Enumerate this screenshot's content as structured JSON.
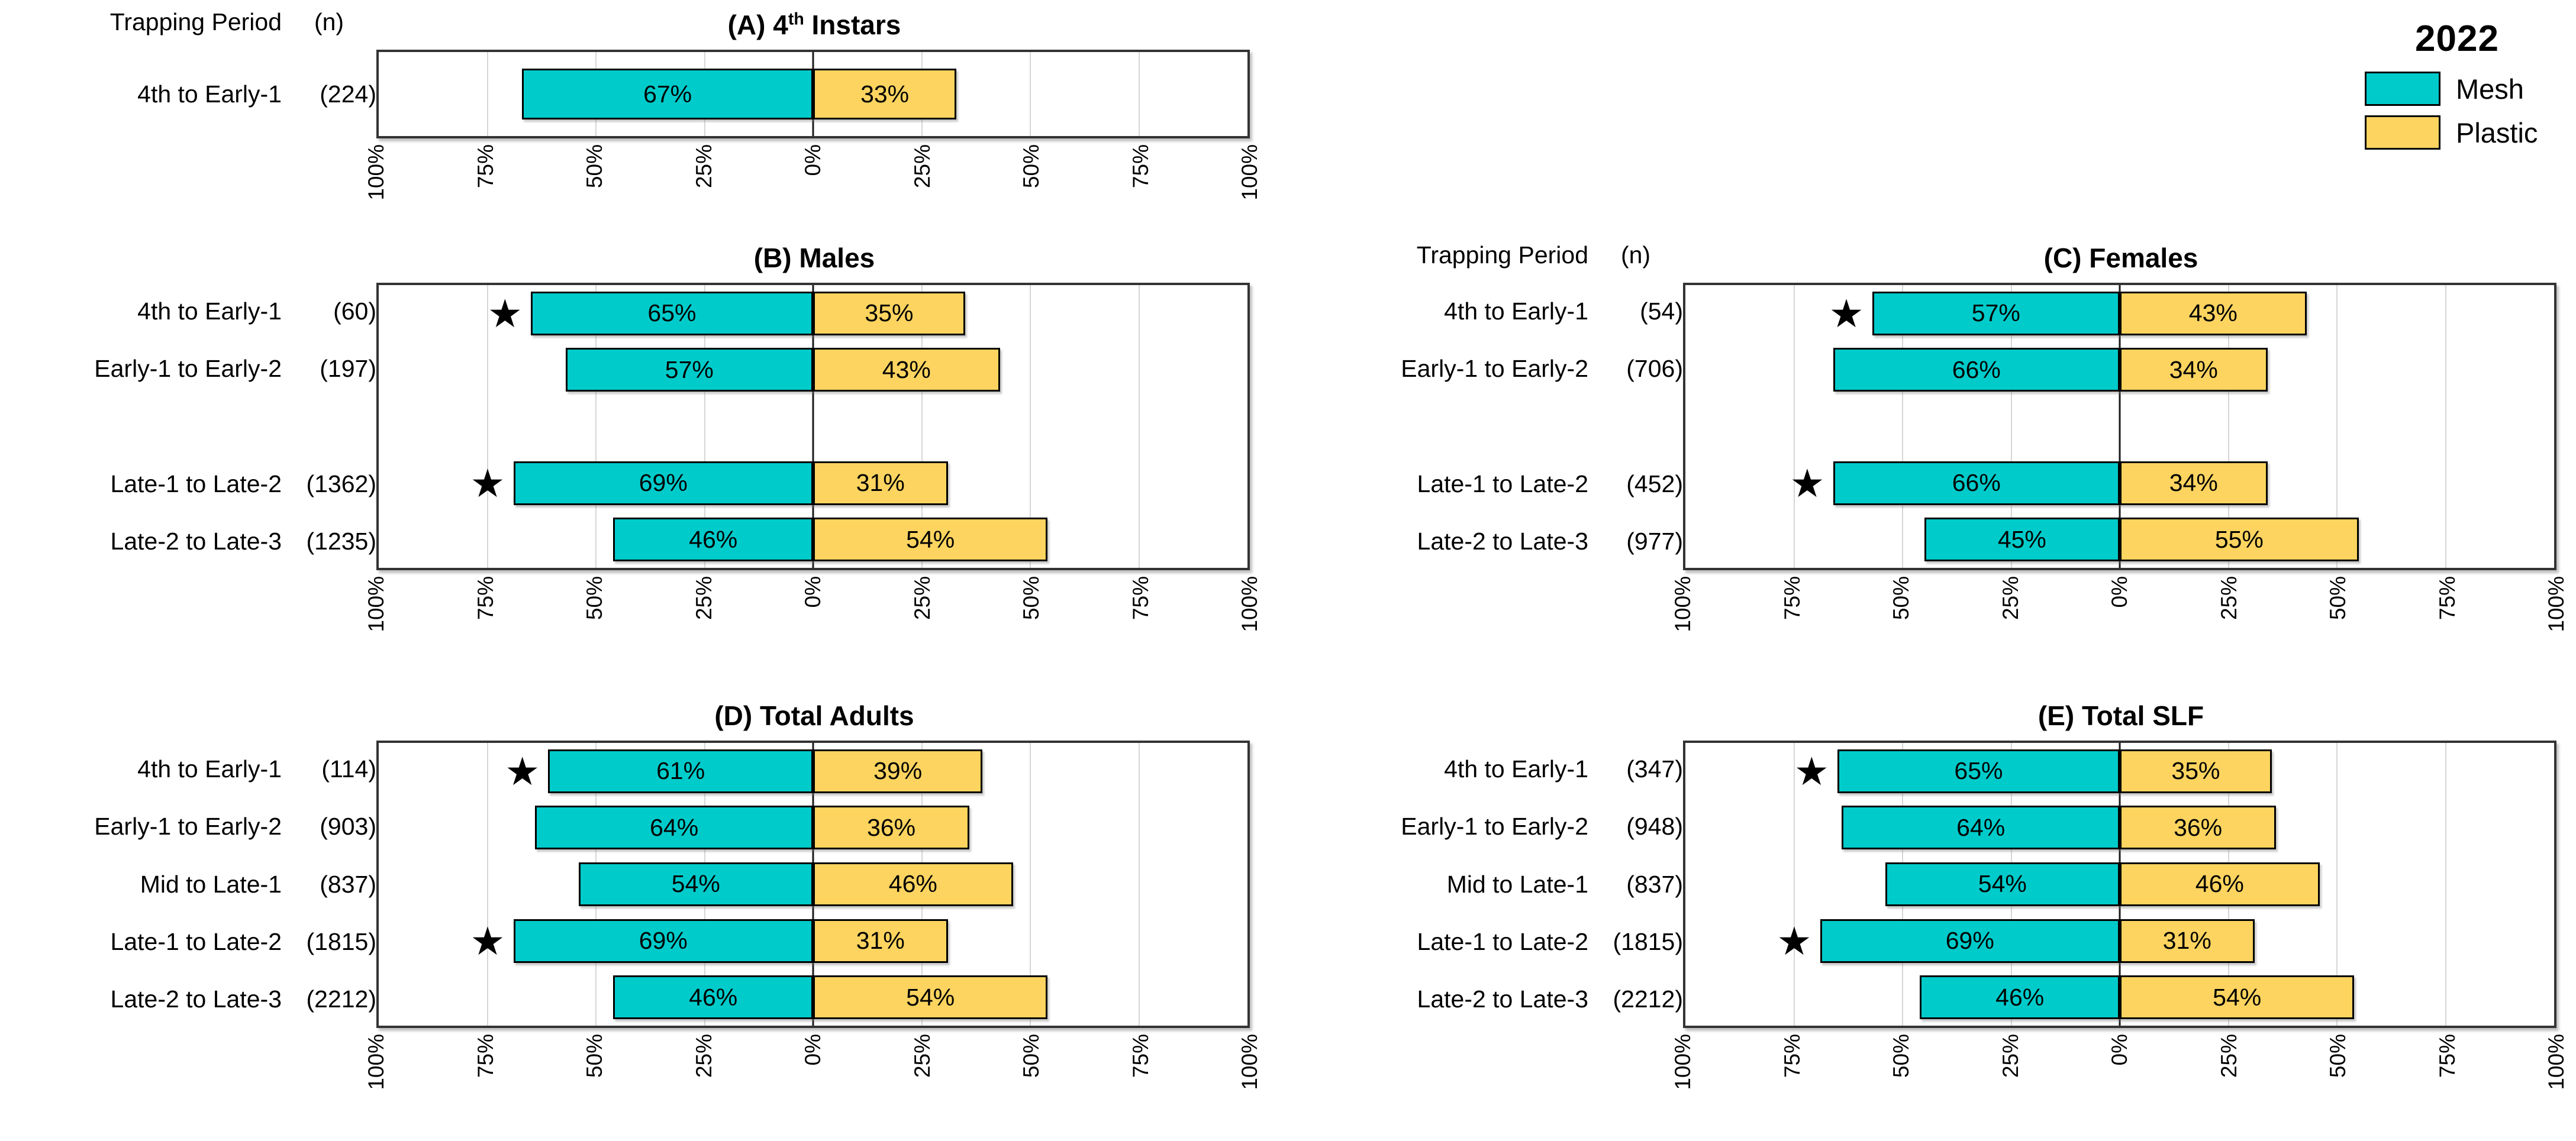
{
  "legend": {
    "year": "2022",
    "items": [
      {
        "label": "Mesh",
        "color": "#00CBCB"
      },
      {
        "label": "Plastic",
        "color": "#FCD45F"
      }
    ]
  },
  "column_header": {
    "period": "Trapping Period",
    "n": "(n)"
  },
  "axis": {
    "tick_labels": [
      "100%",
      "75%",
      "50%",
      "25%",
      "0%",
      "25%",
      "50%",
      "75%",
      "100%"
    ],
    "xlim": [
      -100,
      100
    ],
    "tick_step": 25,
    "orientation": "horizontal-diverging",
    "tick_rotation": "vertical"
  },
  "colors": {
    "mesh": "#00CBCB",
    "plastic": "#FCD45F",
    "gridline": "#D6D6D6",
    "center_line": "#1A1A1A"
  },
  "chart_data": [
    {
      "panel": "A",
      "type": "bar",
      "title": "(A) 4th Instars",
      "title_parts": {
        "pre": "(A) 4",
        "sup": "th",
        "post": " Instars"
      },
      "show_column_header": true,
      "series_names": [
        "Mesh",
        "Plastic"
      ],
      "rows": [
        {
          "period": "4th to Early-1",
          "n": 224,
          "n_label": "(224)",
          "mesh": 67,
          "plastic": 33,
          "star": false
        }
      ]
    },
    {
      "panel": "B",
      "type": "bar",
      "title": "(B) Males",
      "show_column_header": false,
      "series_names": [
        "Mesh",
        "Plastic"
      ],
      "rows": [
        {
          "period": "4th to Early-1",
          "n": 60,
          "n_label": "(60)",
          "mesh": 65,
          "plastic": 35,
          "star": true
        },
        {
          "period": "Early-1 to Early-2",
          "n": 197,
          "n_label": "(197)",
          "mesh": 57,
          "plastic": 43,
          "star": false
        },
        null,
        {
          "period": "Late-1 to Late-2",
          "n": 1362,
          "n_label": "(1362)",
          "mesh": 69,
          "plastic": 31,
          "star": true
        },
        {
          "period": "Late-2 to Late-3",
          "n": 1235,
          "n_label": "(1235)",
          "mesh": 46,
          "plastic": 54,
          "star": false
        }
      ]
    },
    {
      "panel": "C",
      "type": "bar",
      "title": "(C) Females",
      "show_column_header": true,
      "series_names": [
        "Mesh",
        "Plastic"
      ],
      "rows": [
        {
          "period": "4th to Early-1",
          "n": 54,
          "n_label": "(54)",
          "mesh": 57,
          "plastic": 43,
          "star": true
        },
        {
          "period": "Early-1 to Early-2",
          "n": 706,
          "n_label": "(706)",
          "mesh": 66,
          "plastic": 34,
          "star": false
        },
        null,
        {
          "period": "Late-1 to Late-2",
          "n": 452,
          "n_label": "(452)",
          "mesh": 66,
          "plastic": 34,
          "star": true
        },
        {
          "period": "Late-2 to Late-3",
          "n": 977,
          "n_label": "(977)",
          "mesh": 45,
          "plastic": 55,
          "star": false
        }
      ]
    },
    {
      "panel": "D",
      "type": "bar",
      "title": "(D) Total Adults",
      "show_column_header": false,
      "series_names": [
        "Mesh",
        "Plastic"
      ],
      "rows": [
        {
          "period": "4th to Early-1",
          "n": 114,
          "n_label": "(114)",
          "mesh": 61,
          "plastic": 39,
          "star": true
        },
        {
          "period": "Early-1 to Early-2",
          "n": 903,
          "n_label": "(903)",
          "mesh": 64,
          "plastic": 36,
          "star": false
        },
        {
          "period": "Mid to Late-1",
          "n": 837,
          "n_label": "(837)",
          "mesh": 54,
          "plastic": 46,
          "star": false
        },
        {
          "period": "Late-1 to Late-2",
          "n": 1815,
          "n_label": "(1815)",
          "mesh": 69,
          "plastic": 31,
          "star": true
        },
        {
          "period": "Late-2 to Late-3",
          "n": 2212,
          "n_label": "(2212)",
          "mesh": 46,
          "plastic": 54,
          "star": false
        }
      ]
    },
    {
      "panel": "E",
      "type": "bar",
      "title": "(E) Total SLF",
      "show_column_header": false,
      "series_names": [
        "Mesh",
        "Plastic"
      ],
      "rows": [
        {
          "period": "4th to Early-1",
          "n": 347,
          "n_label": "(347)",
          "mesh": 65,
          "plastic": 35,
          "star": true
        },
        {
          "period": "Early-1 to Early-2",
          "n": 948,
          "n_label": "(948)",
          "mesh": 64,
          "plastic": 36,
          "star": false
        },
        {
          "period": "Mid to Late-1",
          "n": 837,
          "n_label": "(837)",
          "mesh": 54,
          "plastic": 46,
          "star": false
        },
        {
          "period": "Late-1 to Late-2",
          "n": 1815,
          "n_label": "(1815)",
          "mesh": 69,
          "plastic": 31,
          "star": true
        },
        {
          "period": "Late-2 to Late-3",
          "n": 2212,
          "n_label": "(2212)",
          "mesh": 46,
          "plastic": 54,
          "star": false
        }
      ]
    }
  ]
}
